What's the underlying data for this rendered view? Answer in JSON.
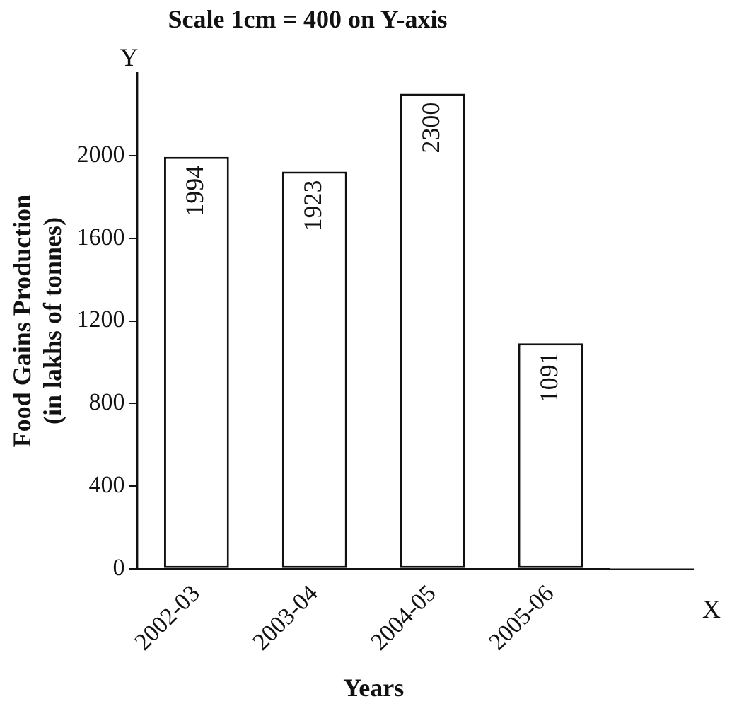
{
  "chart_data": {
    "type": "bar",
    "title": "Scale 1cm = 400 on Y-axis",
    "xlabel": "Years",
    "ylabel": "Food Gains Production\n(in lakhs of tonnes)",
    "categories": [
      "2002-03",
      "2003-04",
      "2004-05",
      "2005-06"
    ],
    "values": [
      1994,
      1923,
      2300,
      1091
    ],
    "color": "#ffffff",
    "data_labels": true,
    "ylim": [
      0,
      2400
    ],
    "yticks": [
      0,
      400,
      800,
      1200,
      1600,
      2000
    ],
    "grid": false,
    "legend": false,
    "annotations": [
      "Y",
      "X"
    ]
  }
}
